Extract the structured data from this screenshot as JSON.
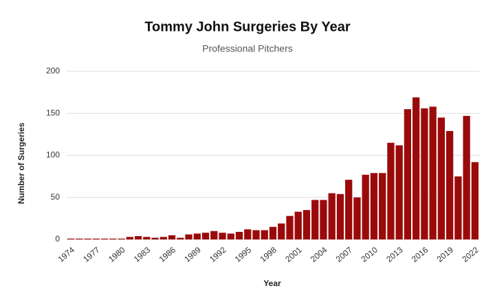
{
  "chart_data": {
    "type": "bar",
    "title": "Tommy John Surgeries By Year",
    "subtitle": "Professional Pitchers",
    "x_label": "Year",
    "y_label": "Number of Surgeries",
    "categories": [
      "1974",
      null,
      null,
      "1977",
      null,
      null,
      "1980",
      null,
      null,
      "1983",
      null,
      null,
      "1986",
      null,
      null,
      "1989",
      null,
      null,
      "1992",
      null,
      null,
      "1995",
      null,
      null,
      "1998",
      null,
      null,
      "2001",
      null,
      null,
      "2004",
      null,
      null,
      "2007",
      null,
      null,
      "2010",
      null,
      null,
      "2013",
      null,
      null,
      "2016",
      null,
      null,
      "2019",
      null,
      null,
      "2022"
    ],
    "values": [
      1,
      1,
      1,
      1,
      1,
      1,
      1,
      3,
      4,
      3,
      2,
      3,
      5,
      2,
      6,
      7,
      8,
      10,
      8,
      7,
      9,
      12,
      11,
      11,
      15,
      19,
      28,
      33,
      35,
      47,
      47,
      55,
      54,
      71,
      50,
      77,
      79,
      79,
      115,
      112,
      155,
      169,
      156,
      158,
      145,
      129,
      75,
      147,
      92
    ],
    "color": "#9b0a0a",
    "ylim": [
      0,
      200
    ],
    "yticks": [
      0,
      50,
      100,
      150,
      200
    ],
    "grid": true
  }
}
